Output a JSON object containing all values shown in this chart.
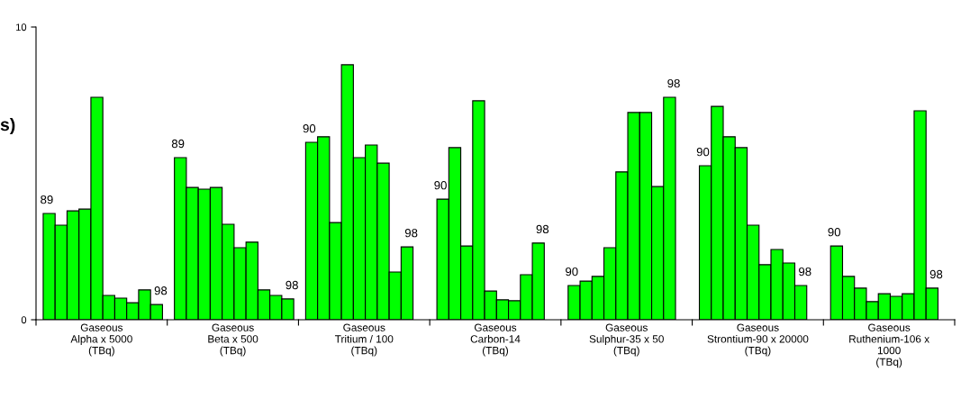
{
  "chart_data": {
    "type": "bar",
    "categories": [
      "Gaseous\nAlpha x 5000\n(TBq)",
      "Gaseous\nBeta x 500\n(TBq)",
      "Gaseous\nTritium / 100\n(TBq)",
      "Gaseous\nCarbon-14\n(TBq)",
      "Gaseous\nSulphur-35 x 50\n(TBq)",
      "Gaseous\nStrontium-90 x 20000\n(TBq)",
      "Gaseous\nRuthenium-106 x\n1000\n(TBq)"
    ],
    "series": [
      {
        "name": "89",
        "color": "#00ff00",
        "values": [
          3.63,
          5.54,
          null,
          null,
          null,
          null,
          null
        ]
      },
      {
        "name": "90",
        "color": "#00ff00",
        "values": [
          3.23,
          4.52,
          6.06,
          4.12,
          1.17,
          5.26,
          2.52
        ]
      },
      {
        "color": "#00ff00",
        "values": [
          3.72,
          4.46,
          6.25,
          5.88,
          1.32,
          7.29,
          1.48
        ]
      },
      {
        "color": "#00ff00",
        "values": [
          3.78,
          4.52,
          3.32,
          2.52,
          1.48,
          6.25,
          1.08
        ]
      },
      {
        "color": "#00ff00",
        "values": [
          7.6,
          3.26,
          8.71,
          7.48,
          2.46,
          5.88,
          0.62
        ]
      },
      {
        "color": "#00ff00",
        "values": [
          0.83,
          2.46,
          5.54,
          0.98,
          5.05,
          3.23,
          0.89
        ]
      },
      {
        "color": "#00ff00",
        "values": [
          0.74,
          2.65,
          5.97,
          0.68,
          7.08,
          1.88,
          0.8
        ]
      },
      {
        "color": "#00ff00",
        "values": [
          0.58,
          1.02,
          5.35,
          0.65,
          7.08,
          2.4,
          0.89
        ]
      },
      {
        "color": "#00ff00",
        "values": [
          1.02,
          0.83,
          1.63,
          1.54,
          4.55,
          1.94,
          7.14
        ]
      },
      {
        "name": "98",
        "color": "#00ff00",
        "values": [
          0.52,
          0.71,
          2.49,
          2.62,
          7.6,
          1.17,
          1.08
        ]
      }
    ],
    "ylim": [
      0,
      10
    ],
    "yticks": [
      0,
      10
    ],
    "grid": false,
    "legend": false,
    "annotations": [
      "s)"
    ]
  }
}
